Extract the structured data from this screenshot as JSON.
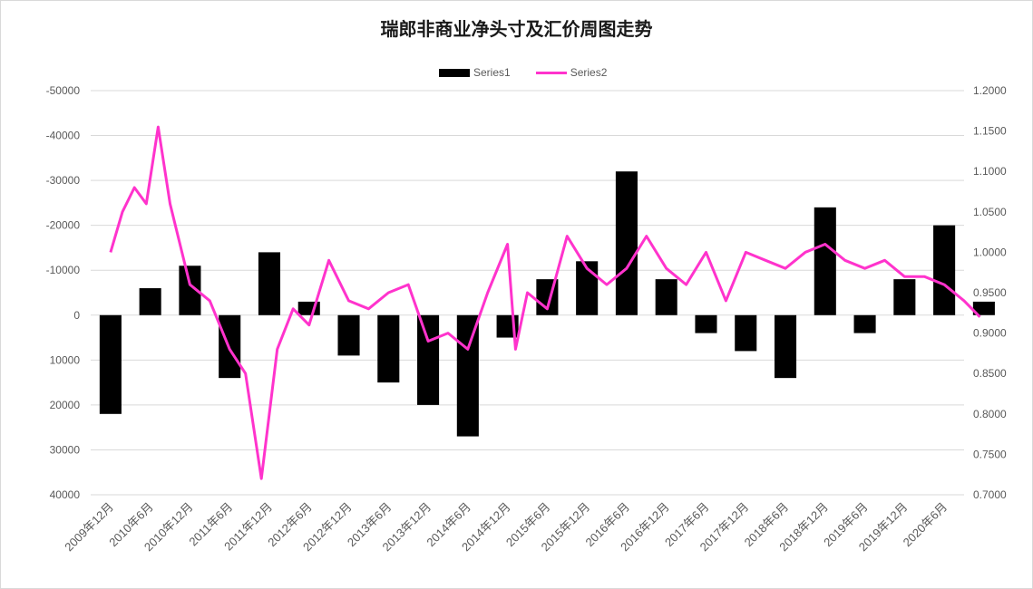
{
  "chart_data": {
    "type": "bar+line",
    "title": "瑞郎非商业净头寸及汇价周图走势",
    "legend_position": "top",
    "grid": true,
    "left_axis": {
      "ticks": [
        -50000,
        -40000,
        -30000,
        -20000,
        -10000,
        0,
        10000,
        20000,
        30000,
        40000
      ],
      "tick_labels": [
        "-50000",
        "-40000",
        "-30000",
        "-20000",
        "-10000",
        "0",
        "10000",
        "20000",
        "30000",
        "40000"
      ],
      "range": [
        -50000,
        40000
      ],
      "inverted": true
    },
    "right_axis": {
      "ticks": [
        1.2,
        1.15,
        1.1,
        1.05,
        1.0,
        0.95,
        0.9,
        0.85,
        0.8,
        0.75,
        0.7
      ],
      "tick_labels": [
        "1.2000",
        "1.1500",
        "1.1000",
        "1.0500",
        "1.0000",
        "0.9500",
        "0.9000",
        "0.8500",
        "0.8000",
        "0.7500",
        "0.7000"
      ],
      "range": [
        0.7,
        1.2
      ]
    },
    "x_axis_labels": [
      "2009年12月",
      "2010年6月",
      "2010年12月",
      "2011年6月",
      "2011年12月",
      "2012年6月",
      "2012年12月",
      "2013年6月",
      "2013年12月",
      "2014年6月",
      "2014年12月",
      "2015年6月",
      "2015年12月",
      "2016年6月",
      "2016年12月",
      "2017年6月",
      "2017年12月",
      "2018年6月",
      "2018年12月",
      "2019年6月",
      "2019年12月",
      "2020年6月"
    ],
    "series": [
      {
        "name": "Series1",
        "kind": "bar",
        "color": "#000000",
        "x_index": [
          0,
          1,
          2,
          3,
          4,
          5,
          6,
          7,
          8,
          9,
          10,
          11,
          12,
          13,
          14,
          15,
          16,
          17,
          18,
          19,
          20,
          21,
          22
        ],
        "values": [
          22000,
          -6000,
          -11000,
          14000,
          -14000,
          -3000,
          9000,
          15000,
          20000,
          27000,
          5000,
          -8000,
          -12000,
          -32000,
          -8000,
          4000,
          8000,
          14000,
          -24000,
          4000,
          -8000,
          -20000,
          -3000
        ]
      },
      {
        "name": "Series2",
        "kind": "line",
        "color": "#ff33cc",
        "x": [
          0,
          0.3,
          0.6,
          0.9,
          1.2,
          1.5,
          2.0,
          2.5,
          3.0,
          3.4,
          3.8,
          4.2,
          4.6,
          5.0,
          5.5,
          6.0,
          6.5,
          7.0,
          7.5,
          8.0,
          8.5,
          9.0,
          9.5,
          10.0,
          10.2,
          10.5,
          11.0,
          11.5,
          12.0,
          12.5,
          13.0,
          13.5,
          14.0,
          14.5,
          15.0,
          15.5,
          16.0,
          16.5,
          17.0,
          17.5,
          18.0,
          18.5,
          19.0,
          19.5,
          20.0,
          20.5,
          21.0,
          21.5,
          21.9
        ],
        "values": [
          1.0,
          1.05,
          1.08,
          1.06,
          1.155,
          1.06,
          0.96,
          0.94,
          0.88,
          0.85,
          0.72,
          0.88,
          0.93,
          0.91,
          0.99,
          0.94,
          0.93,
          0.95,
          0.96,
          0.89,
          0.9,
          0.88,
          0.95,
          1.01,
          0.88,
          0.95,
          0.93,
          1.02,
          0.98,
          0.96,
          0.98,
          1.02,
          0.98,
          0.96,
          1.0,
          0.94,
          1.0,
          0.99,
          0.98,
          1.0,
          1.01,
          0.99,
          0.98,
          0.99,
          0.97,
          0.97,
          0.96,
          0.94,
          0.92
        ]
      }
    ]
  }
}
